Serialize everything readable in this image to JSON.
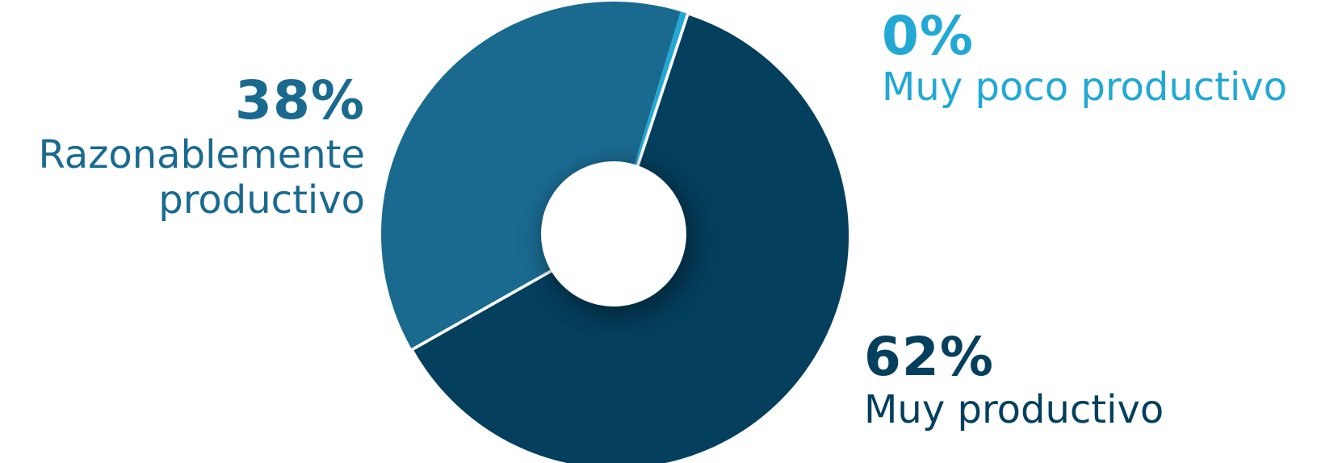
{
  "chart_data": {
    "type": "pie",
    "categories": [
      "Razonablemente productivo",
      "Muy poco productivo",
      "Muy productivo"
    ],
    "values": [
      38,
      0,
      62
    ],
    "percent_labels": [
      "38%",
      "0%",
      "62%"
    ],
    "colors": [
      "#1a6a90",
      "#22a8d4",
      "#043f5e"
    ],
    "title": "",
    "legend": "none"
  }
}
